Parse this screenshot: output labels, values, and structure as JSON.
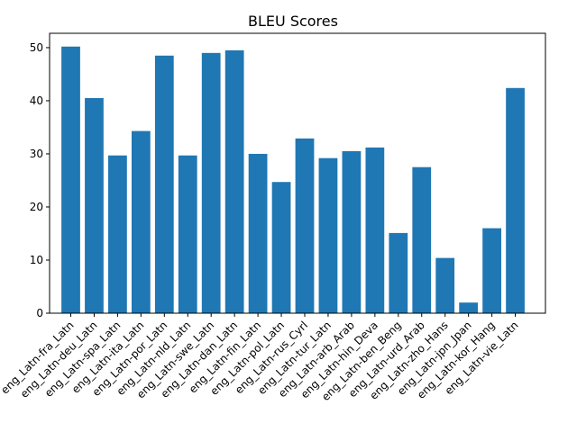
{
  "chart_data": {
    "type": "bar",
    "title": "BLEU Scores",
    "xlabel": "",
    "ylabel": "",
    "categories": [
      "eng_Latn-fra_Latn",
      "eng_Latn-deu_Latn",
      "eng_Latn-spa_Latn",
      "eng_Latn-ita_Latn",
      "eng_Latn-por_Latn",
      "eng_Latn-nld_Latn",
      "eng_Latn-swe_Latn",
      "eng_Latn-dan_Latn",
      "eng_Latn-fin_Latn",
      "eng_Latn-pol_Latn",
      "eng_Latn-rus_Cyrl",
      "eng_Latn-tur_Latn",
      "eng_Latn-arb_Arab",
      "eng_Latn-hin_Deva",
      "eng_Latn-ben_Beng",
      "eng_Latn-urd_Arab",
      "eng_Latn-zho_Hans",
      "eng_Latn-jpn_Jpan",
      "eng_Latn-kor_Hang",
      "eng_Latn-vie_Latn"
    ],
    "values": [
      50.2,
      40.5,
      29.7,
      34.3,
      48.5,
      29.7,
      49.0,
      49.5,
      30.0,
      24.7,
      32.9,
      29.2,
      30.5,
      31.2,
      15.1,
      27.5,
      10.4,
      2.0,
      16.0,
      42.4
    ],
    "ylim": [
      0,
      52.7
    ],
    "yticks": [
      0,
      10,
      20,
      30,
      40,
      50
    ],
    "bar_color": "#1f77b4",
    "grid": false,
    "legend": "none"
  }
}
